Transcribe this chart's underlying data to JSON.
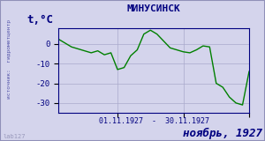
{
  "title": "МИНУСИНСК",
  "ylabel": "t,°C",
  "xlabel": "01.11.1927  -  30.11.1927",
  "footer_left": "lab127",
  "footer_right": "ноябрь, 1927",
  "source_label": "источник:  гидрометцентр",
  "ylim": [
    -35,
    8
  ],
  "yticks": [
    0,
    -10,
    -20,
    -30
  ],
  "line_color": "#008000",
  "background_color": "#d4d4ec",
  "plot_bg_color": "#d4d4ec",
  "border_color": "#9090b8",
  "days": [
    1,
    2,
    3,
    4,
    5,
    6,
    7,
    8,
    9,
    10,
    11,
    12,
    13,
    14,
    15,
    16,
    17,
    18,
    19,
    20,
    21,
    22,
    23,
    24,
    25,
    26,
    27,
    28,
    29,
    30
  ],
  "temps": [
    2.5,
    0.5,
    -1.5,
    -2.5,
    -3.5,
    -4.5,
    -3.5,
    -5.5,
    -4.5,
    -13,
    -12,
    -6,
    -3,
    5,
    7,
    5,
    1.5,
    -2,
    -3,
    -4,
    -4.5,
    -3,
    -1,
    -1.5,
    -20,
    -22,
    -27,
    -30,
    -31,
    -14
  ]
}
